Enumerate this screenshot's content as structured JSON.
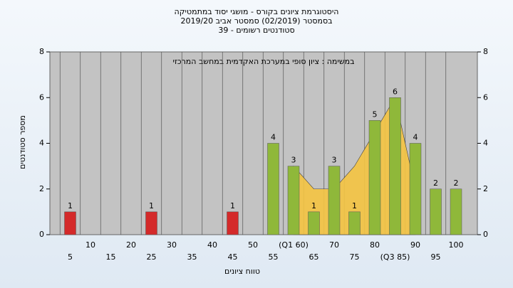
{
  "chart_data": {
    "type": "bar",
    "title": [
      "היסטוגרמת ציונים בקורס - מושגי יסוד במתמטיקה",
      "בסמסטר  (02/2019)  סמסטר אביב 2019/20",
      "סטודנטים רשומים - 39"
    ],
    "annotation": "במשימה : ציון סופי במערכת האקדמית במחשב המרכזי",
    "x_label": "טווח ציונים",
    "y_label": "מספר סטודנטים",
    "categories": [
      "5",
      "10",
      "15",
      "20",
      "25",
      "30",
      "35",
      "40",
      "45",
      "50",
      "55",
      "(Q1 60)",
      "65",
      "70",
      "75",
      "80",
      "(Q3 85)",
      "90",
      "95",
      "100"
    ],
    "values": [
      1,
      0,
      0,
      0,
      1,
      0,
      0,
      0,
      1,
      0,
      4,
      3,
      1,
      3,
      1,
      5,
      6,
      4,
      2,
      2
    ],
    "value_labels": [
      "1",
      null,
      null,
      null,
      "1",
      null,
      null,
      null,
      "1",
      null,
      "4",
      "3",
      "1",
      "3",
      "1",
      "5",
      "6",
      "4",
      "2",
      "2"
    ],
    "colors": [
      "#d42a2a",
      "#d42a2a",
      "#d42a2a",
      "#d42a2a",
      "#d42a2a",
      "#d42a2a",
      "#d42a2a",
      "#d42a2a",
      "#d42a2a",
      "#d42a2a",
      "#8fb83a",
      "#8fb83a",
      "#8fb83a",
      "#8fb83a",
      "#8fb83a",
      "#8fb83a",
      "#8fb83a",
      "#8fb83a",
      "#8fb83a",
      "#8fb83a"
    ],
    "area": {
      "color": "#f5c542",
      "values": [
        null,
        null,
        null,
        null,
        null,
        null,
        null,
        null,
        null,
        null,
        null,
        3,
        2,
        2,
        3,
        4.5,
        6,
        2,
        null,
        null
      ]
    },
    "ylim": [
      0,
      8
    ],
    "yticks": [
      0,
      2,
      4,
      6,
      8
    ],
    "y2lim": [
      0,
      8
    ],
    "y2ticks": [
      0,
      2,
      4,
      6,
      8
    ]
  }
}
